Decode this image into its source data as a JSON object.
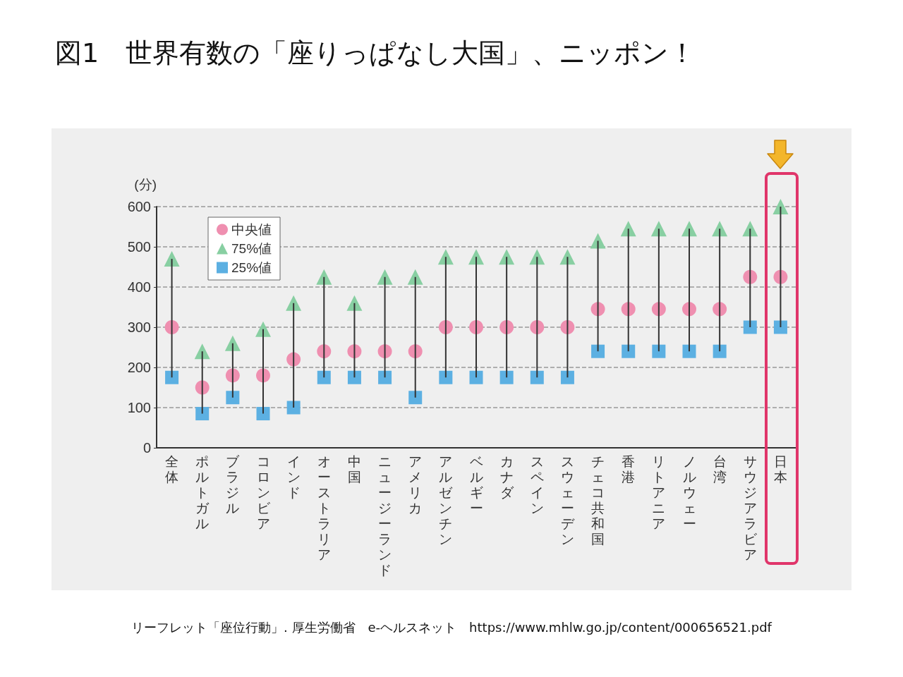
{
  "chart_data": {
    "type": "scatter",
    "title": "図1　世界有数の「座りっぱなし大国」、ニッポン！",
    "ylabel": "(分)",
    "categories": [
      "全体",
      "ポルトガル",
      "ブラジル",
      "コロンビア",
      "インド",
      "オーストラリア",
      "中国",
      "ニュージーランド",
      "アメリカ",
      "アルゼンチン",
      "ベルギー",
      "カナダ",
      "スペイン",
      "スウェーデン",
      "チェコ共和国",
      "香港",
      "リトアニア",
      "ノルウェー",
      "台湾",
      "サウジアラビア",
      "日本"
    ],
    "series": [
      {
        "name": "中央値",
        "color": "#ef8fb0",
        "marker": "circle",
        "values": [
          300,
          150,
          180,
          180,
          220,
          240,
          240,
          240,
          240,
          300,
          300,
          300,
          300,
          300,
          345,
          345,
          345,
          345,
          345,
          425,
          425
        ]
      },
      {
        "name": "75%値",
        "color": "#88cfa2",
        "marker": "triangle",
        "values": [
          470,
          240,
          260,
          295,
          360,
          425,
          360,
          425,
          425,
          475,
          475,
          475,
          475,
          475,
          515,
          545,
          545,
          545,
          545,
          545,
          600
        ]
      },
      {
        "name": "25%値",
        "color": "#5cb0e2",
        "marker": "square",
        "values": [
          175,
          85,
          125,
          85,
          100,
          175,
          175,
          175,
          125,
          175,
          175,
          175,
          175,
          175,
          240,
          240,
          240,
          240,
          240,
          300,
          300
        ]
      },
      {
        "type": "bar",
        "color": "#333333",
        "base": [
          175,
          85,
          125,
          85,
          100,
          175,
          175,
          175,
          125,
          175,
          175,
          175,
          175,
          175,
          240,
          240,
          240,
          240,
          240,
          300,
          300
        ],
        "values": [
          295,
          155,
          135,
          210,
          260,
          250,
          185,
          250,
          300,
          300,
          300,
          300,
          300,
          300,
          275,
          305,
          305,
          305,
          305,
          245,
          300
        ]
      }
    ],
    "ylim": [
      0,
      600
    ],
    "yticks": [
      0,
      100,
      200,
      300,
      400,
      500,
      600
    ],
    "grid": "y",
    "legend": "top left",
    "annotations": [
      "リーフレット「座位行動」. 厚生労働省　e-ヘルスネット　https://www.mhlw.go.jp/content/000656521.pdf"
    ]
  }
}
